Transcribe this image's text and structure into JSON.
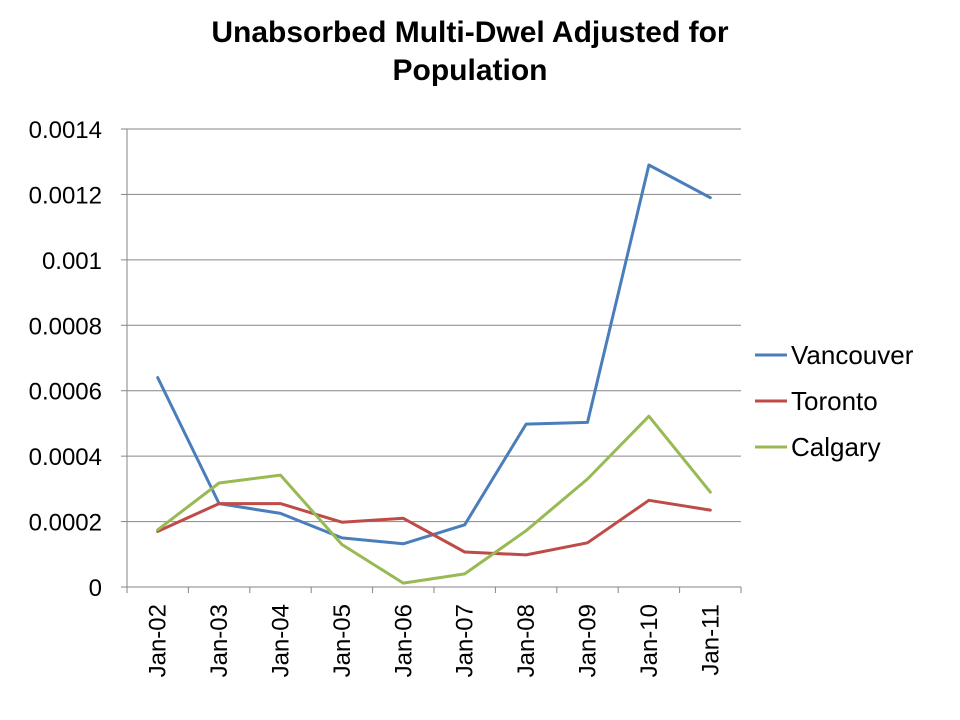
{
  "chart_data": {
    "type": "line",
    "title_line1": "Unabsorbed Multi-Dwel Adjusted for",
    "title_line2": "Population",
    "xlabel": "",
    "ylabel": "",
    "categories": [
      "Jan-02",
      "Jan-03",
      "Jan-04",
      "Jan-05",
      "Jan-06",
      "Jan-07",
      "Jan-08",
      "Jan-09",
      "Jan-10",
      "Jan-11"
    ],
    "ylim": [
      0,
      0.0014
    ],
    "yticks": [
      0,
      0.0002,
      0.0004,
      0.0006,
      0.0008,
      0.001,
      0.0012,
      0.0014
    ],
    "ytick_labels": [
      "0",
      "0.0002",
      "0.0004",
      "0.0006",
      "0.0008",
      "0.001",
      "0.0012",
      "0.0014"
    ],
    "grid": true,
    "legend_position": "right",
    "series": [
      {
        "name": "Vancouver",
        "color": "#4a7ebb",
        "values": [
          0.00064,
          0.000255,
          0.000225,
          0.00015,
          0.000132,
          0.00019,
          0.000498,
          0.000503,
          0.00129,
          0.00119
        ]
      },
      {
        "name": "Toronto",
        "color": "#be4b48",
        "values": [
          0.00017,
          0.000255,
          0.000255,
          0.000198,
          0.00021,
          0.000107,
          9.8e-05,
          0.000135,
          0.000265,
          0.000235
        ]
      },
      {
        "name": "Calgary",
        "color": "#98b954",
        "values": [
          0.000175,
          0.000318,
          0.000342,
          0.00013,
          1.2e-05,
          4e-05,
          0.000172,
          0.00033,
          0.000522,
          0.00029
        ]
      }
    ]
  }
}
